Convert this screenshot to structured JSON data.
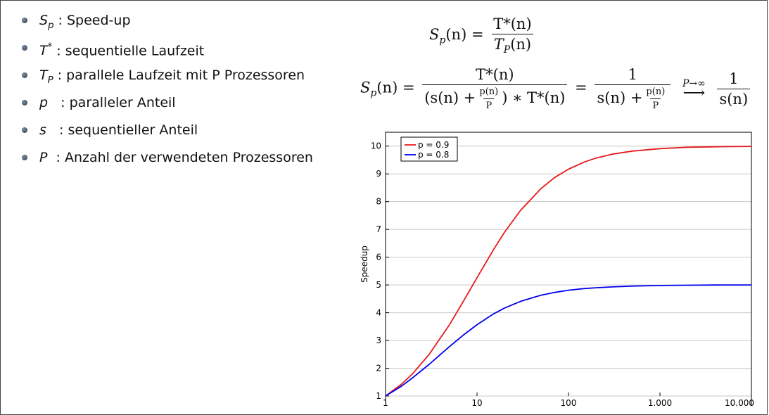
{
  "bullets": [
    {
      "sym": "S",
      "sub": "p",
      "sup": "",
      "text": " : Speed-up"
    },
    {
      "sym": "T",
      "sub": "",
      "sup": "*",
      "text": " : sequentielle Laufzeit"
    },
    {
      "sym": "T",
      "sub": "P",
      "sup": "",
      "text": " : parallele Laufzeit mit P Prozessoren"
    },
    {
      "sym": "p",
      "sub": "",
      "sup": "",
      "text": "   : paralleler Anteil"
    },
    {
      "sym": "s",
      "sub": "",
      "sup": "",
      "text": "   : sequentieller Anteil"
    },
    {
      "sym": "P",
      "sub": "",
      "sup": "",
      "text": "  : Anzahl der verwendeten Prozessoren"
    }
  ],
  "formula1": {
    "lhs": "S",
    "lhs_sub": "p",
    "lhs_arg": "(n) =",
    "num": "T*(n)",
    "den": "T",
    "den_sub": "P",
    "den_arg": "(n)"
  },
  "formula2": {
    "lhs": "S",
    "lhs_sub": "p",
    "lhs_arg": "(n) =",
    "num1": "T*(n)",
    "den1_a": "(s(n) +",
    "den1_fnum": "p(n)",
    "den1_fden": "P",
    "den1_b": ") ∗ T*(n)",
    "eq": "=",
    "num2": "1",
    "den2_a": "s(n) +",
    "den2_fnum": "p(n)",
    "den2_fden": "P",
    "limit": "P→∞",
    "arrow": "⟶",
    "num3": "1",
    "den3": "s(n)"
  },
  "chart_data": {
    "type": "line",
    "xlabel": "",
    "ylabel": "Speedup",
    "x_scale": "log",
    "xlim": [
      1,
      10000
    ],
    "ylim": [
      1,
      10.5
    ],
    "x_ticks": [
      1,
      10,
      100,
      1000,
      10000
    ],
    "x_tick_labels": [
      "1",
      "10",
      "100",
      "1.000",
      "10.000"
    ],
    "y_ticks": [
      1,
      2,
      3,
      4,
      5,
      6,
      7,
      8,
      9,
      10
    ],
    "grid": "horizontal",
    "legend_position": "top-left",
    "series": [
      {
        "name": "p = 0.9",
        "color": "#e41a1c",
        "x": [
          1,
          1.5,
          2,
          3,
          5,
          7,
          10,
          15,
          20,
          30,
          50,
          70,
          100,
          150,
          200,
          300,
          500,
          1000,
          2000,
          5000,
          10000
        ],
        "y": [
          1.0,
          1.43,
          1.82,
          2.5,
          3.57,
          4.38,
          5.26,
          6.25,
          6.9,
          7.69,
          8.47,
          8.86,
          9.17,
          9.43,
          9.57,
          9.71,
          9.82,
          9.91,
          9.96,
          9.98,
          9.99
        ]
      },
      {
        "name": "p = 0.8",
        "color": "#0000ee",
        "x": [
          1,
          1.5,
          2,
          3,
          5,
          7,
          10,
          15,
          20,
          30,
          50,
          70,
          100,
          150,
          200,
          300,
          500,
          1000,
          2000,
          5000,
          10000
        ],
        "y": [
          1.0,
          1.36,
          1.67,
          2.14,
          2.78,
          3.18,
          3.57,
          3.95,
          4.17,
          4.41,
          4.63,
          4.73,
          4.81,
          4.87,
          4.9,
          4.93,
          4.96,
          4.98,
          4.99,
          5.0,
          5.0
        ]
      }
    ]
  }
}
